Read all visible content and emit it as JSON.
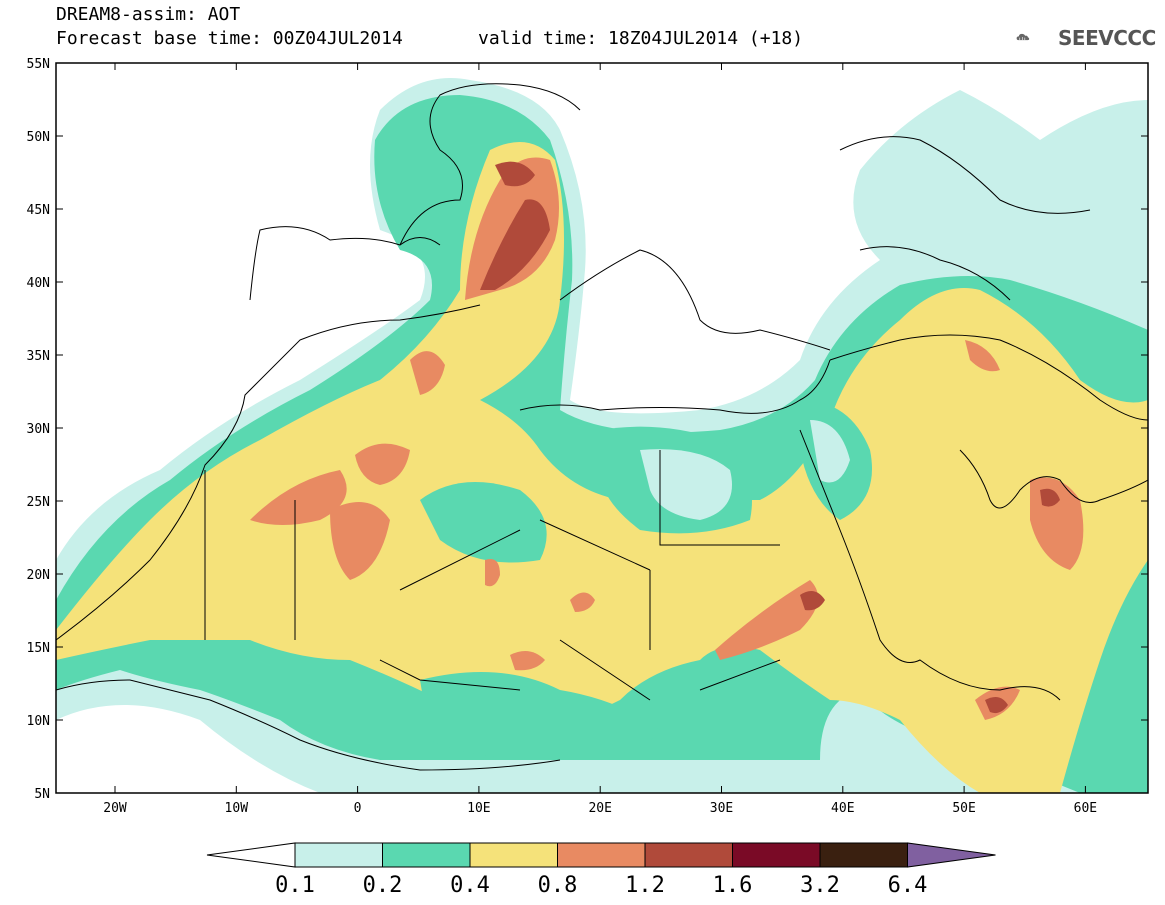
{
  "title": {
    "line1": "DREAM8-assim: AOT",
    "line2": "Forecast base time: 00Z04JUL2014",
    "line2b": "valid time: 18Z04JUL2014 (+18)"
  },
  "logo": {
    "text": "SEEVCCC",
    "icon": "cloud-icon"
  },
  "map": {
    "lat_labels": [
      "55N",
      "50N",
      "45N",
      "40N",
      "35N",
      "30N",
      "25N",
      "20N",
      "15N",
      "10N",
      "5N"
    ],
    "lon_labels": [
      "20W",
      "10W",
      "0",
      "10E",
      "20E",
      "30E",
      "40E",
      "50E",
      "60E"
    ]
  },
  "colorbar": {
    "colors": [
      "#c8f0ea",
      "#5ad8b0",
      "#f5e27a",
      "#e88a62",
      "#b04a3a",
      "#7a0a26",
      "#3a2010"
    ],
    "under_color": "#ffffff",
    "over_color": "#8060a0",
    "labels": [
      "0.1",
      "0.2",
      "0.4",
      "0.8",
      "1.2",
      "1.6",
      "3.2",
      "6.4"
    ]
  }
}
